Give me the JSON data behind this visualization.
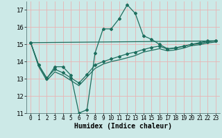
{
  "title": "",
  "xlabel": "Humidex (Indice chaleur)",
  "xlim": [
    -0.5,
    23.5
  ],
  "ylim": [
    11,
    17.5
  ],
  "yticks": [
    11,
    12,
    13,
    14,
    15,
    16,
    17
  ],
  "xticks": [
    0,
    1,
    2,
    3,
    4,
    5,
    6,
    7,
    8,
    9,
    10,
    11,
    12,
    13,
    14,
    15,
    16,
    17,
    18,
    19,
    20,
    21,
    22,
    23
  ],
  "bg_color": "#cce9e7",
  "grid_color": "#e8b4b4",
  "line_color": "#1e6e5e",
  "lines": [
    {
      "x": [
        0,
        1,
        2,
        3,
        4,
        5,
        6,
        7,
        8,
        9,
        10,
        11,
        12,
        13,
        14,
        15,
        16,
        17,
        18,
        19,
        20,
        21,
        22,
        23
      ],
      "y": [
        15.1,
        13.8,
        13.0,
        13.7,
        13.7,
        13.2,
        11.0,
        11.2,
        14.5,
        15.9,
        15.9,
        16.5,
        17.3,
        16.8,
        15.5,
        15.3,
        15.0,
        14.75,
        14.8,
        14.9,
        15.0,
        15.1,
        15.2,
        15.2
      ],
      "marker": true,
      "lw": 0.9
    },
    {
      "x": [
        0,
        1,
        2,
        3,
        4,
        5,
        6,
        7,
        8,
        9,
        10,
        11,
        12,
        13,
        14,
        15,
        16,
        17,
        18,
        19,
        20,
        21,
        22,
        23
      ],
      "y": [
        15.1,
        13.8,
        13.05,
        13.55,
        13.35,
        13.05,
        12.75,
        13.25,
        13.8,
        14.0,
        14.15,
        14.3,
        14.45,
        14.55,
        14.7,
        14.82,
        14.9,
        14.72,
        14.78,
        14.88,
        15.0,
        15.05,
        15.15,
        15.2
      ],
      "marker": true,
      "lw": 0.9
    },
    {
      "x": [
        0,
        1,
        2,
        3,
        4,
        5,
        6,
        7,
        8,
        9,
        10,
        11,
        12,
        13,
        14,
        15,
        16,
        17,
        18,
        19,
        20,
        21,
        22,
        23
      ],
      "y": [
        15.1,
        13.7,
        12.9,
        13.4,
        13.2,
        12.9,
        12.6,
        13.1,
        13.6,
        13.85,
        14.0,
        14.1,
        14.22,
        14.35,
        14.55,
        14.65,
        14.75,
        14.62,
        14.68,
        14.78,
        14.93,
        14.98,
        15.08,
        15.14
      ],
      "marker": false,
      "lw": 0.9
    },
    {
      "x": [
        0,
        23
      ],
      "y": [
        15.1,
        15.2
      ],
      "marker": false,
      "lw": 0.9
    }
  ],
  "tick_fontsize": 5.5,
  "label_fontsize": 7.0
}
